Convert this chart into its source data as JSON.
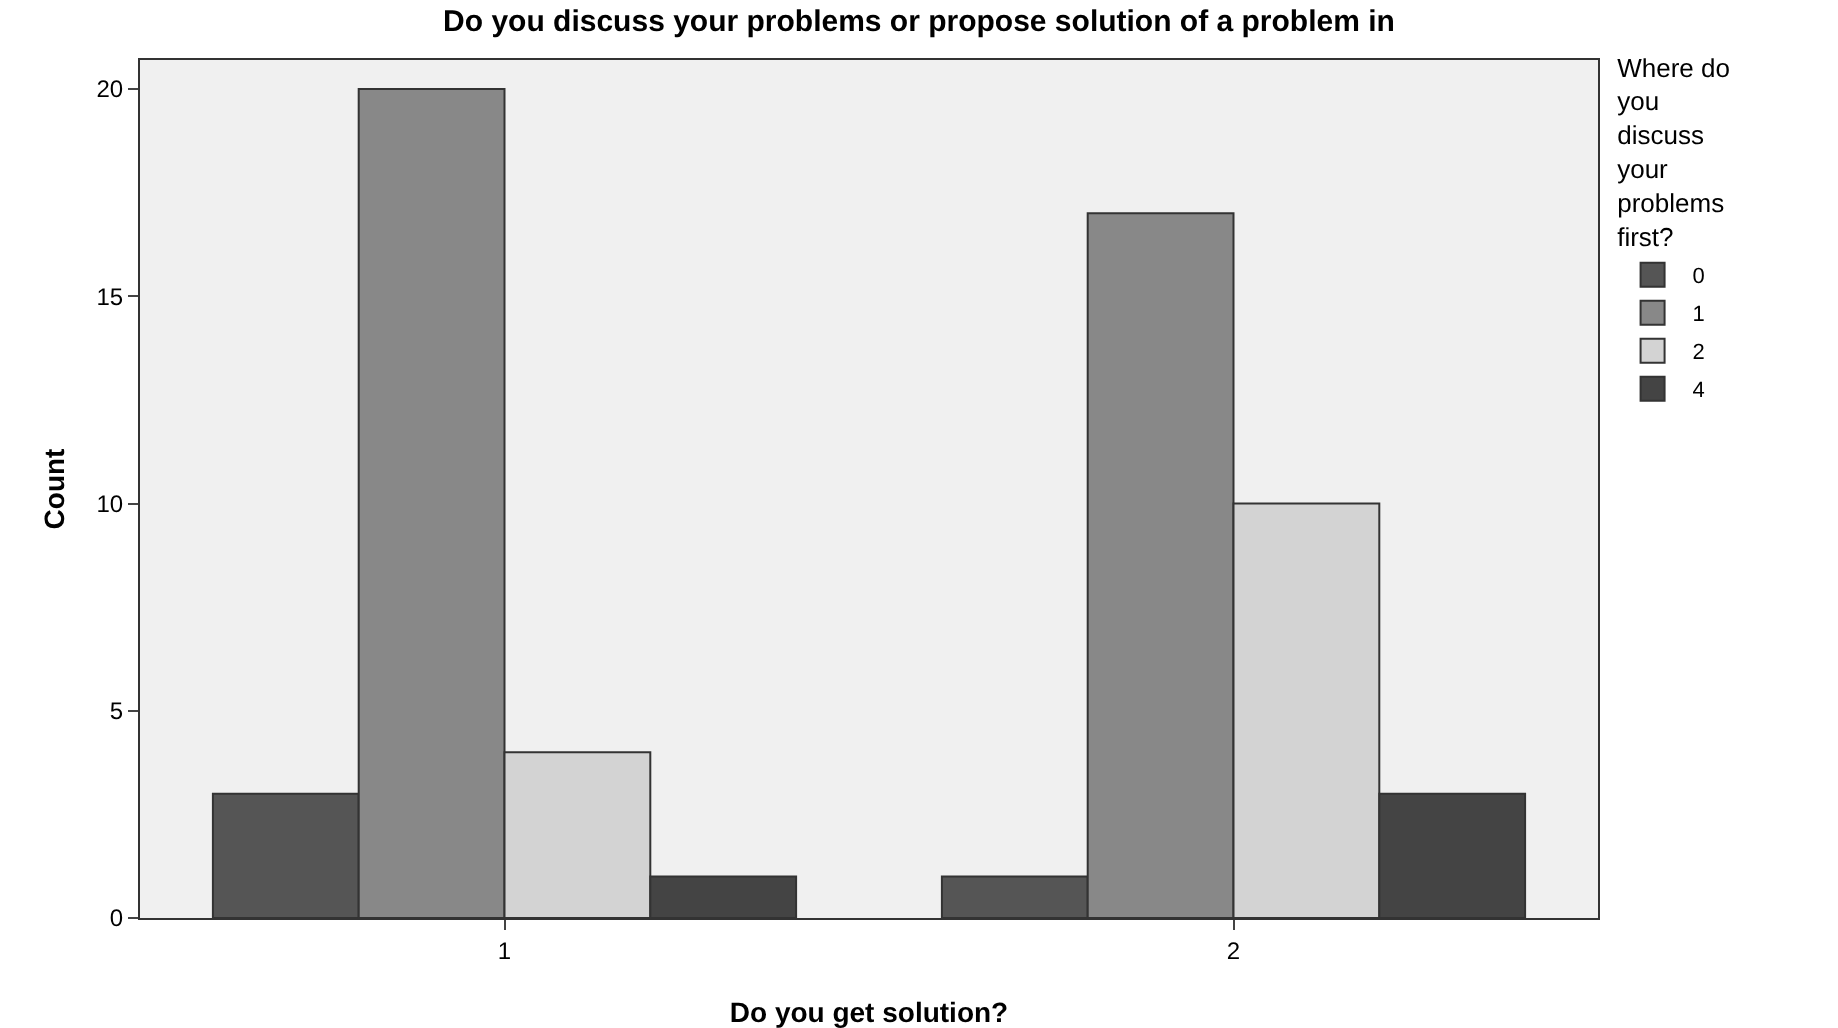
{
  "chart_data": {
    "type": "bar",
    "title": "Do you discuss your problems or propose solution of a problem in",
    "xlabel": "Do you get solution?",
    "ylabel": "Count",
    "legend_title": "Where do you discuss your problems first?",
    "categories": [
      "1",
      "2"
    ],
    "series": [
      {
        "name": "0",
        "color": "#555555",
        "values": [
          3,
          1
        ]
      },
      {
        "name": "1",
        "color": "#888888",
        "values": [
          20,
          17
        ]
      },
      {
        "name": "2",
        "color": "#d3d3d3",
        "values": [
          4,
          10
        ]
      },
      {
        "name": "4",
        "color": "#444444",
        "values": [
          1,
          3
        ]
      }
    ],
    "ylim": [
      0,
      20.7
    ],
    "yticks": [
      0,
      5,
      10,
      15,
      20
    ],
    "grid": false,
    "legend": "right"
  }
}
